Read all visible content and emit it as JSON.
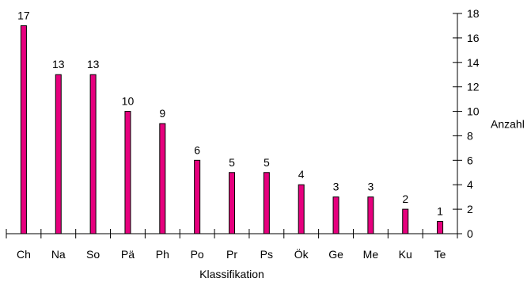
{
  "chart_data": {
    "type": "bar",
    "title": "",
    "xlabel": "Klassifikation",
    "ylabel": "Anzahl",
    "y_axis_side": "right",
    "ylim": [
      0,
      18
    ],
    "yticks": [
      0,
      2,
      4,
      6,
      8,
      10,
      12,
      14,
      16,
      18
    ],
    "categories": [
      "Ch",
      "Na",
      "So",
      "Pä",
      "Ph",
      "Po",
      "Pr",
      "Ps",
      "Ök",
      "Ge",
      "Me",
      "Ku",
      "Te"
    ],
    "values": [
      17,
      13,
      13,
      10,
      9,
      6,
      5,
      5,
      4,
      3,
      3,
      2,
      1
    ],
    "data_labels": [
      "17",
      "13",
      "13",
      "10",
      "9",
      "6",
      "5",
      "5",
      "4",
      "3",
      "3",
      "2",
      "1"
    ],
    "bar_color": "#E6007E",
    "bar_outline_color": "#000000",
    "grid": false,
    "legend": "none"
  }
}
